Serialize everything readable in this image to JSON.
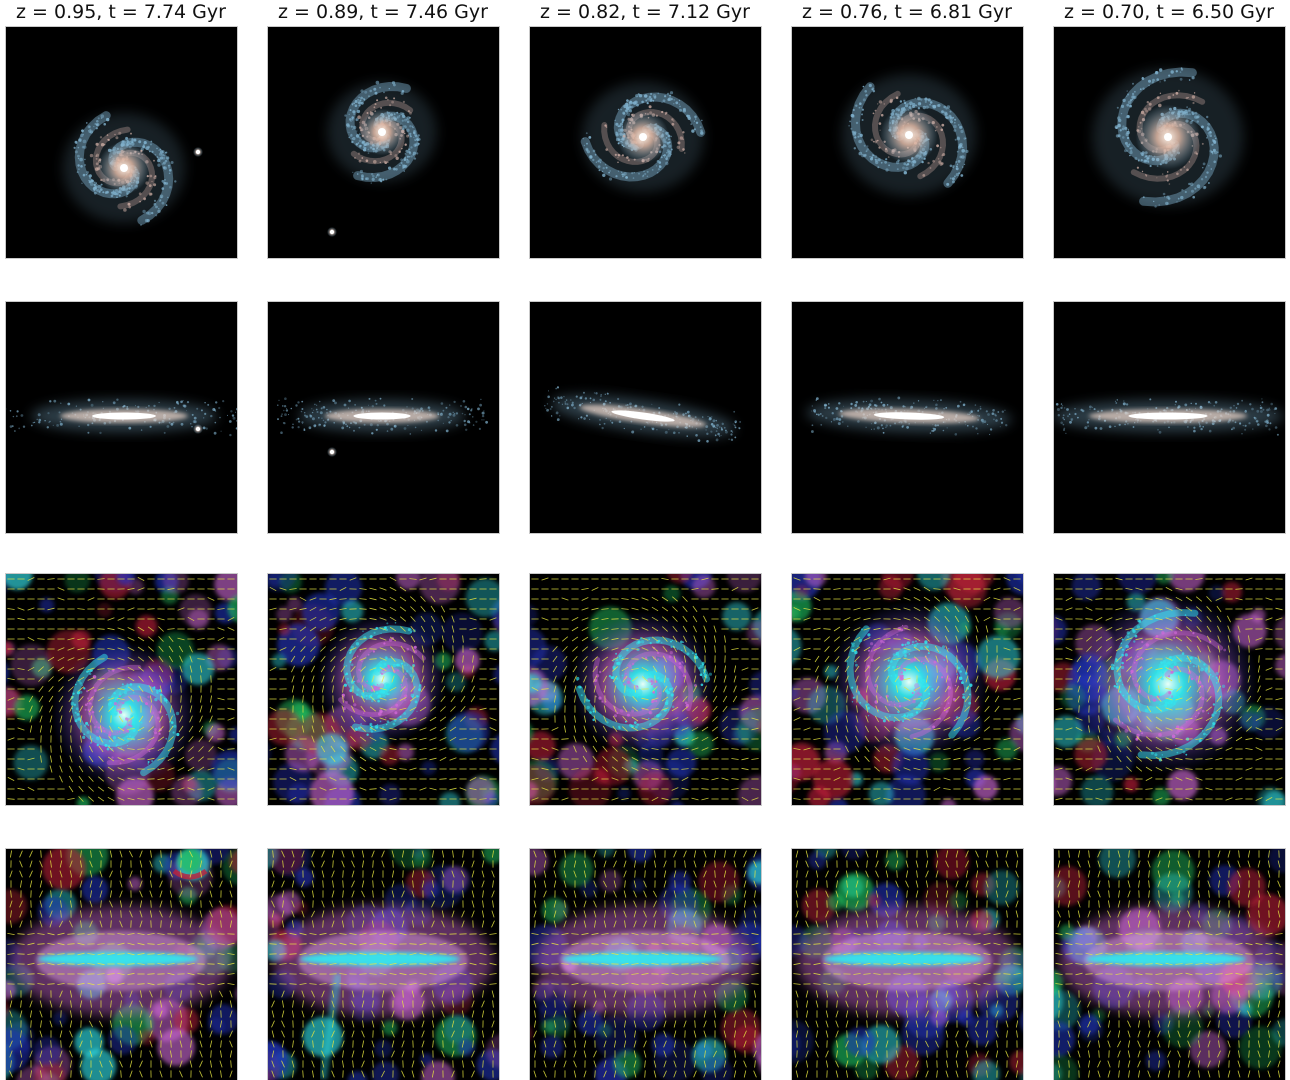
{
  "figure": {
    "column_titles": [
      "z = 0.95, t = 7.74 Gyr",
      "z = 0.89, t = 7.46 Gyr",
      "z = 0.82, t = 7.12 Gyr",
      "z = 0.76, t = 6.81 Gyr",
      "z = 0.70, t = 6.50 Gyr"
    ],
    "rows": [
      {
        "content": "stellar light, face-on"
      },
      {
        "content": "stellar light, edge-on"
      },
      {
        "content": "gas map with field vectors, face-on"
      },
      {
        "content": "gas map with field vectors, edge-on"
      }
    ]
  },
  "colors": {
    "background": "#000000",
    "star_core": "#fff3e8",
    "star_disk": "#e0b9a6",
    "star_arms": "#7fb0cc",
    "gas_cyan": "#33e6ee",
    "gas_magenta": "#d06ad8",
    "gas_blue": "#2233bb",
    "gas_red": "#c0203a",
    "gas_green": "#20c060",
    "vector_color": "#e8e840"
  }
}
